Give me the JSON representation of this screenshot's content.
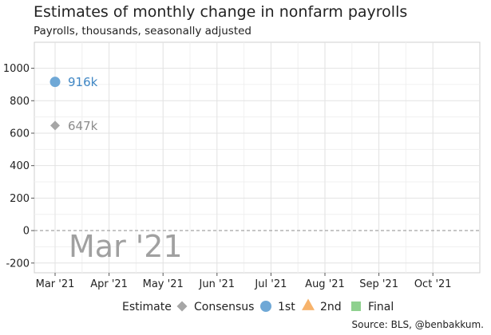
{
  "chart_data": {
    "type": "scatter",
    "title": "Estimates of monthly change in nonfarm payrolls",
    "subtitle": "Payrolls, thousands, seasonally adjusted",
    "source": "Source: BLS, @benbakkum.",
    "x_categories": [
      "Mar '21",
      "Apr '21",
      "May '21",
      "Jun '21",
      "Jul '21",
      "Aug '21",
      "Sep '21",
      "Oct '21"
    ],
    "y_ticks": [
      -200,
      0,
      200,
      400,
      600,
      800,
      1000
    ],
    "ylim": [
      -260,
      1160
    ],
    "grid": true,
    "zero_line": "dashed",
    "watermark": "Mar '21",
    "legend": {
      "position": "bottom",
      "title": "Estimate",
      "entries": [
        {
          "name": "Consensus",
          "shape": "diamond",
          "color": "#a6a6a6"
        },
        {
          "name": "1st",
          "shape": "circle",
          "color": "#6fa8d6"
        },
        {
          "name": "2nd",
          "shape": "triangle",
          "color": "#f7b36b"
        },
        {
          "name": "Final",
          "shape": "square",
          "color": "#8fd18f"
        }
      ]
    },
    "series": [
      {
        "name": "Consensus",
        "points": [
          {
            "x": "Mar '21",
            "y": 647,
            "label": "647k"
          }
        ]
      },
      {
        "name": "1st",
        "points": [
          {
            "x": "Mar '21",
            "y": 916,
            "label": "916k"
          }
        ]
      },
      {
        "name": "2nd",
        "points": []
      },
      {
        "name": "Final",
        "points": []
      }
    ]
  }
}
